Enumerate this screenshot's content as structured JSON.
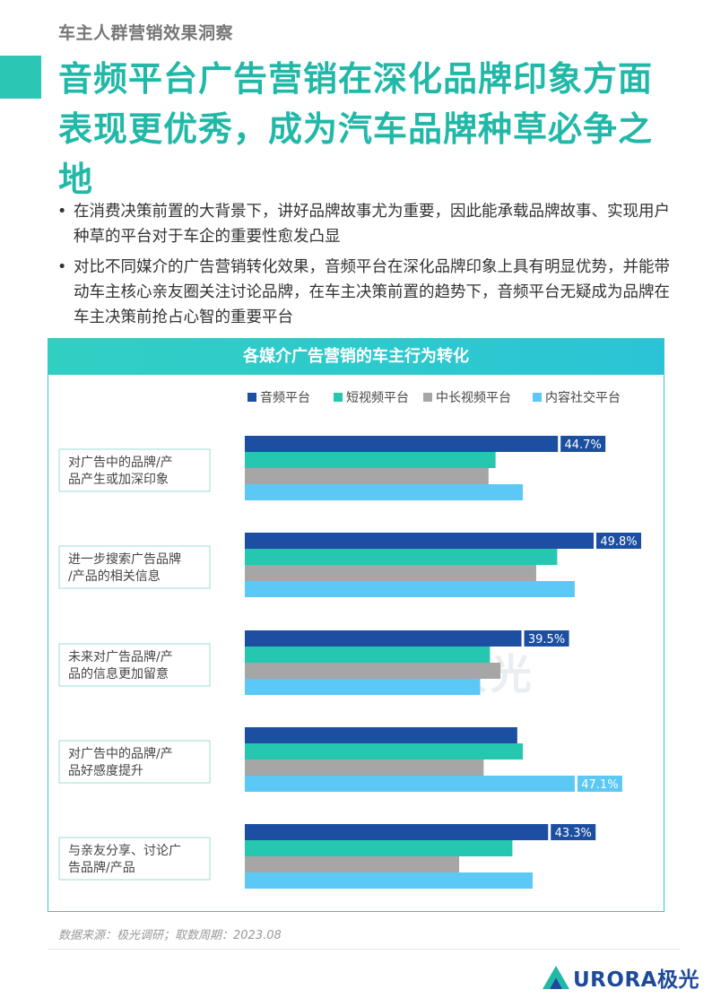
{
  "section_tag": "车主人群营销效果洞察",
  "headline": "音频平台广告营销在深化品牌印象方面表现更优秀，成为汽车品牌种草必争之地",
  "bullets": [
    "在消费决策前置的大背景下，讲好品牌故事尤为重要，因此能承载品牌故事、实现用户种草的平台对于车企的重要性愈发凸显",
    "对比不同媒介的广告营销转化效果，音频平台在深化品牌印象上具有明显优势，并能带动车主核心亲友圈关注讨论品牌，在车主决策前置的趋势下，音频平台无疑成为品牌在车主决策前抢占心智的重要平台"
  ],
  "bullet_marker": "•",
  "chart_data": {
    "type": "bar",
    "orientation": "horizontal",
    "title": "各媒介广告营销的车主行为转化",
    "categories": [
      "对广告中的品牌/产品产生或加深印象",
      "进一步搜索广告品牌/产品的相关信息",
      "未来对广告品牌/产品的信息更加留意",
      "对广告中的品牌/产品好感度提升",
      "与亲友分享、讨论广告品牌/产品"
    ],
    "category_lines": [
      [
        "对广告中的品牌/产",
        "品产生或加深印象"
      ],
      [
        "进一步搜索广告品牌",
        "/产品的相关信息"
      ],
      [
        "未来对广告品牌/产",
        "品的信息更加留意"
      ],
      [
        "对广告中的品牌/产",
        "品好感度提升"
      ],
      [
        "与亲友分享、讨论广",
        "告品牌/产品"
      ]
    ],
    "series": [
      {
        "name": "音频平台",
        "color": "#1c4fa1",
        "values": [
          44.7,
          49.8,
          39.5,
          38.9,
          43.3
        ]
      },
      {
        "name": "短视频平台",
        "color": "#25c7b0",
        "values": [
          35.8,
          44.6,
          35.0,
          39.7,
          38.2
        ]
      },
      {
        "name": "中长视频平台",
        "color": "#a6a6a6",
        "values": [
          34.8,
          41.6,
          36.5,
          34.1,
          30.6
        ]
      },
      {
        "name": "内容社交平台",
        "color": "#5bc8f5",
        "values": [
          39.7,
          47.1,
          33.6,
          47.1,
          41.1
        ]
      }
    ],
    "labels": [
      {
        "category": 0,
        "series": 0,
        "text": "44.7%"
      },
      {
        "category": 1,
        "series": 0,
        "text": "49.8%"
      },
      {
        "category": 2,
        "series": 0,
        "text": "39.5%"
      },
      {
        "category": 3,
        "series": 3,
        "text": "47.1%"
      },
      {
        "category": 4,
        "series": 0,
        "text": "43.3%"
      }
    ],
    "xlim": [
      0,
      55
    ],
    "grid": false,
    "legend": "top"
  },
  "watermark": "URORA极光",
  "source": "数据来源：极光调研；取数周期：2023.08",
  "logo": {
    "text": "URORA极光",
    "colors": [
      "#22b8a8",
      "#1e4a9a"
    ]
  }
}
